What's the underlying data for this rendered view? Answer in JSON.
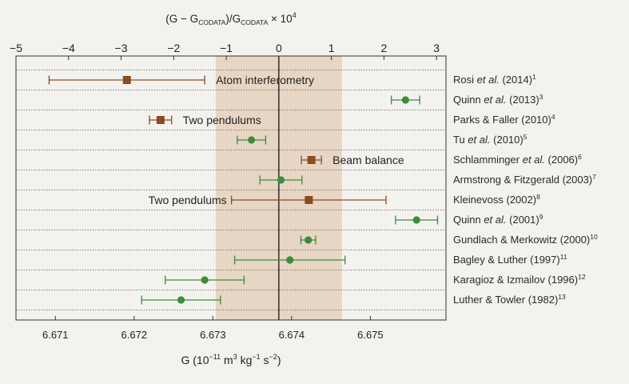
{
  "chart_data": {
    "type": "scatter",
    "x_top": {
      "label": {
        "part1": "(G − G",
        "sub1": "CODATA",
        "part2": ")/G",
        "sub2": "CODATA",
        "part3": " × 10",
        "sup": "4"
      },
      "range": [
        -5,
        3.18
      ],
      "ticks": [
        -5,
        -4,
        -3,
        -2,
        -1,
        0,
        1,
        2,
        3
      ],
      "tick_labels": [
        "−5",
        "−4",
        "−3",
        "−2",
        "−1",
        "0",
        "1",
        "2",
        "3"
      ]
    },
    "x_bottom": {
      "label": {
        "part1": "G (10",
        "sup1": "−11",
        "part2": " m",
        "sup2": "3",
        "part3": " kg",
        "sup3": "−1",
        "part4": " s",
        "sup4": "−2",
        "part5": ")"
      },
      "range": [
        6.6705,
        6.67596
      ],
      "ticks": [
        6.671,
        6.672,
        6.673,
        6.674,
        6.675
      ],
      "tick_labels": [
        "6.671",
        "6.672",
        "6.673",
        "6.674",
        "6.675"
      ]
    },
    "reference_line": 0,
    "shaded_band": [
      -1.2,
      1.2
    ],
    "grid": {
      "horizontal": "dotted",
      "vertical": false
    },
    "colors": {
      "band": "#e8d6c4",
      "axis": "#333333",
      "brown": "#8c4b23",
      "green": "#3c8c3c"
    },
    "points": [
      {
        "name": "Rosi",
        "italic": "et al.",
        "year": "(2014)",
        "ref": "1",
        "value": -2.89,
        "error": 1.48,
        "marker": "square",
        "color": "#8c4b23",
        "note": "Atom interferometry",
        "note_side": "right"
      },
      {
        "name": "Quinn",
        "italic": "et al.",
        "year": "(2013)",
        "ref": "3",
        "value": 2.41,
        "error": 0.27,
        "marker": "circle",
        "color": "#3c8c3c"
      },
      {
        "name": "Parks & Faller",
        "year": "(2010)",
        "ref": "4",
        "value": -2.25,
        "error": 0.21,
        "marker": "square",
        "color": "#8c4b23",
        "note": "Two pendulums",
        "note_side": "right"
      },
      {
        "name": "Tu",
        "italic": "et al.",
        "year": "(2010)",
        "ref": "5",
        "value": -0.52,
        "error": 0.27,
        "marker": "circle",
        "color": "#3c8c3c"
      },
      {
        "name": "Schlamminger",
        "italic": "et al.",
        "year": "(2006)",
        "ref": "6",
        "value": 0.62,
        "error": 0.19,
        "marker": "square",
        "color": "#8c4b23",
        "note": "Beam balance",
        "note_side": "right"
      },
      {
        "name": "Armstrong & Fitzgerald",
        "year": "(2003)",
        "ref": "7",
        "value": 0.04,
        "error": 0.4,
        "marker": "circle",
        "color": "#3c8c3c"
      },
      {
        "name": "Kleinevoss",
        "year": "(2002)",
        "ref": "8",
        "value": 0.57,
        "error": 1.47,
        "marker": "square",
        "color": "#8c4b23",
        "note": "Two pendulums",
        "note_side": "left"
      },
      {
        "name": "Quinn",
        "italic": "et al.",
        "year": "(2001)",
        "ref": "9",
        "value": 2.62,
        "error": 0.4,
        "marker": "circle",
        "color": "#3c8c3c"
      },
      {
        "name": "Gundlach & Merkowitz",
        "year": "(2000)",
        "ref": "10",
        "value": 0.56,
        "error": 0.14,
        "marker": "circle",
        "color": "#3c8c3c"
      },
      {
        "name": "Bagley & Luther",
        "year": "(1997)",
        "ref": "11",
        "value": 0.21,
        "error": 1.05,
        "marker": "circle",
        "color": "#3c8c3c"
      },
      {
        "name": "Karagioz & Izmailov",
        "year": "(1996)",
        "ref": "12",
        "value": -1.41,
        "error": 0.75,
        "marker": "circle",
        "color": "#3c8c3c"
      },
      {
        "name": "Luther & Towler",
        "year": "(1982)",
        "ref": "13",
        "value": -1.86,
        "error": 0.75,
        "marker": "circle",
        "color": "#3c8c3c"
      }
    ]
  }
}
